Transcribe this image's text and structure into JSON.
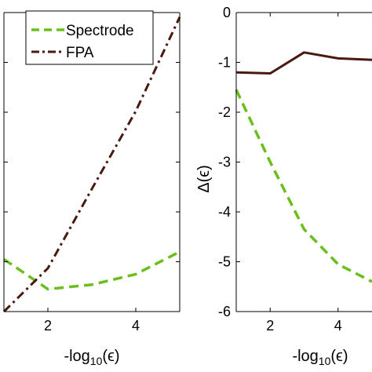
{
  "chart_data": [
    {
      "type": "line",
      "xlabel": "-log10(ε)",
      "ylabel": "",
      "xlim": [
        1,
        5
      ],
      "ylim": [
        0,
        1
      ],
      "xticks": [
        2,
        4
      ],
      "xtick_labels": [
        "2",
        "4"
      ],
      "yticks": [
        0.1667,
        0.3333,
        0.5,
        0.6667,
        0.8333
      ],
      "ytick_labels": [],
      "grid": false,
      "legend_position": "top-left",
      "series": [
        {
          "name": "Spectrode",
          "color": "#6bbf1d",
          "style": "dashed",
          "x": [
            1,
            2,
            3,
            4,
            5
          ],
          "y": [
            0.175,
            0.075,
            0.09,
            0.125,
            0.2
          ]
        },
        {
          "name": "FPA",
          "color": "#4a1a12",
          "style": "dashdot",
          "x": [
            1,
            2,
            3,
            4,
            5
          ],
          "y": [
            0.0,
            0.145,
            0.41,
            0.67,
            0.985
          ]
        }
      ]
    },
    {
      "type": "line",
      "xlabel": "-log10(ε)",
      "ylabel": "Δ(ε)",
      "xlim": [
        1,
        5
      ],
      "ylim": [
        -6,
        0
      ],
      "xticks": [
        2,
        4
      ],
      "xtick_labels": [
        "2",
        "4"
      ],
      "yticks": [
        0,
        -1,
        -2,
        -3,
        -4,
        -5,
        -6
      ],
      "ytick_labels": [
        "0",
        "-1",
        "-2",
        "-3",
        "-4",
        "-5",
        "-6"
      ],
      "grid": false,
      "series": [
        {
          "color": "#4a1a12",
          "style": "solid",
          "x": [
            1,
            2,
            3,
            4,
            5
          ],
          "y": [
            -1.2,
            -1.22,
            -0.8,
            -0.92,
            -0.95
          ]
        },
        {
          "color": "#6bbf1d",
          "style": "dashed",
          "x": [
            1,
            2,
            3,
            4,
            5
          ],
          "y": [
            -1.55,
            -3.0,
            -4.35,
            -5.05,
            -5.4
          ]
        }
      ]
    }
  ]
}
